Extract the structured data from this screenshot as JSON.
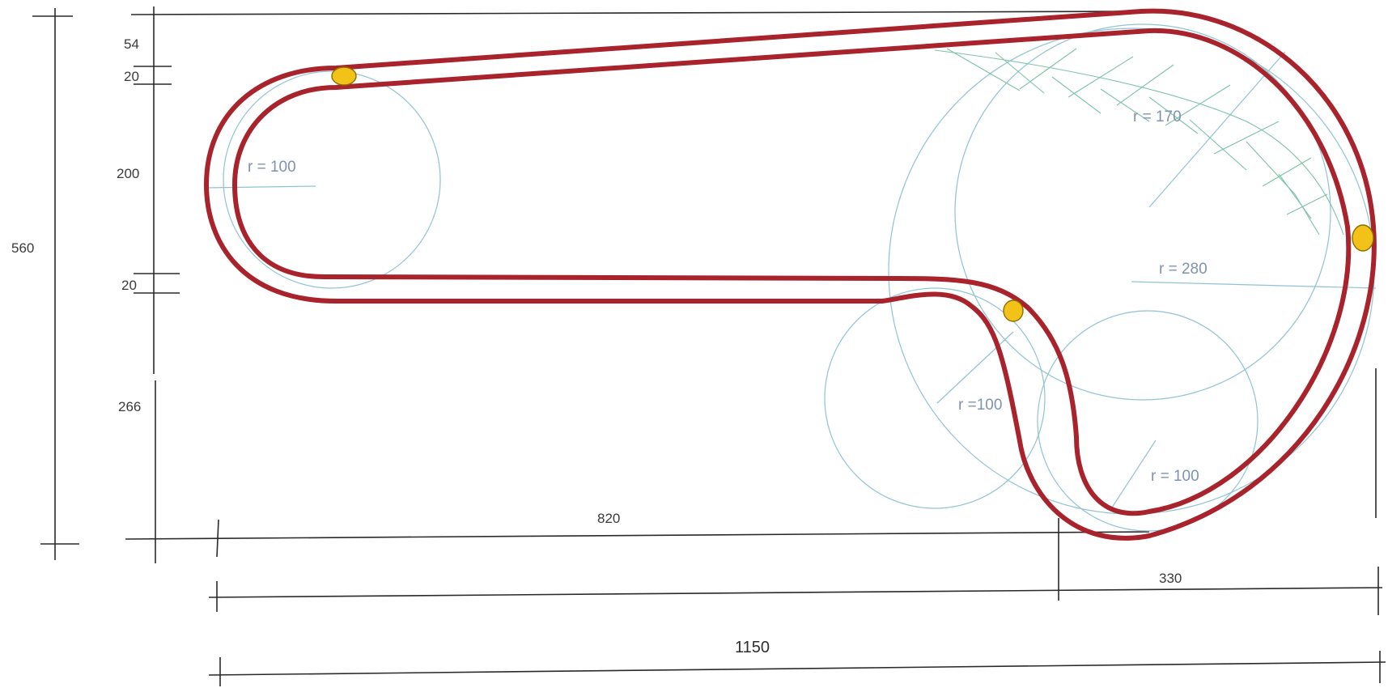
{
  "dimensions": {
    "total_height": "560",
    "top_offset": "54",
    "rail_gap_top": "20",
    "loop_diameter": "200",
    "rail_gap_bottom": "20",
    "bottom_offset": "266",
    "straight_length": "820",
    "right_section": "330",
    "total_width": "1150"
  },
  "radii": {
    "left_loop": "r = 100",
    "upper_right": "r =  170",
    "large_right": "r = 280",
    "middle_s": "r =100",
    "lower_right": "r = 100"
  },
  "colors": {
    "rail": "#a8232b",
    "marker_fill": "#f2c218",
    "guide": "#8fc3d3",
    "hatch": "#7cc3a6",
    "dimension": "#2a2a2a"
  }
}
